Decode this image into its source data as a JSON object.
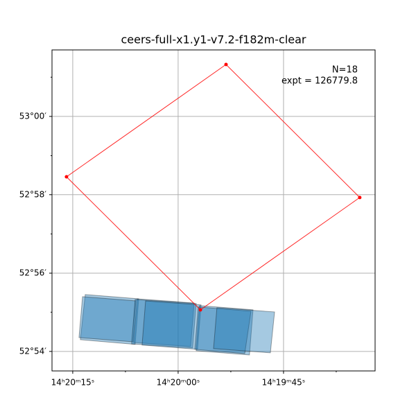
{
  "chart_data": {
    "type": "footprint",
    "title": "ceers-full-x1.y1-v7.2-f182m-clear",
    "annotations": [
      "N=18",
      "expt = 126779.8"
    ],
    "xlim": [
      215.0748,
      214.8832
    ],
    "ylim": [
      52.8917,
      53.0283
    ],
    "xticks": [
      {
        "value": 215.0625,
        "label": "14ʰ20ᵐ15ˢ"
      },
      {
        "value": 215.0,
        "label": "14ʰ20ᵐ00ˢ"
      },
      {
        "value": 214.9375,
        "label": "14ʰ19ᵐ45ˢ"
      }
    ],
    "yticks": [
      {
        "value": 52.9,
        "label": "52°54′"
      },
      {
        "value": 52.9333,
        "label": "52°56′"
      },
      {
        "value": 52.9667,
        "label": "52°58′"
      },
      {
        "value": 53.0,
        "label": "53°00′"
      }
    ],
    "xminorticks": [
      215.03125,
      214.96875,
      214.90625
    ],
    "yminorticks": [
      52.9167,
      52.95,
      52.9833,
      53.0167
    ],
    "grid": true,
    "polygon": {
      "color": "#ff0000",
      "ra": [
        215.0662,
        214.9716,
        214.8923,
        214.9868
      ],
      "dec": [
        52.9743,
        53.0221,
        52.9655,
        52.9177
      ]
    },
    "footprint_color": "#1f77b4",
    "footprints": [
      {
        "ra": [
          215.0551,
          215.0234,
          215.0255,
          215.058
        ],
        "dec": [
          52.9242,
          52.9224,
          52.903,
          52.905
        ]
      },
      {
        "ra": [
          215.0567,
          215.0251,
          215.0267,
          215.0588
        ],
        "dec": [
          52.9233,
          52.9215,
          52.9041,
          52.9059
        ]
      },
      {
        "ra": [
          215.0243,
          214.9905,
          214.9926,
          215.0263
        ],
        "dec": [
          52.9224,
          52.9206,
          52.9021,
          52.9038
        ]
      },
      {
        "ra": [
          215.0255,
          214.9893,
          214.9914,
          215.0276
        ],
        "dec": [
          52.9221,
          52.9204,
          52.9015,
          52.9032
        ]
      },
      {
        "ra": [
          215.0193,
          214.9864,
          214.9885,
          215.0214
        ],
        "dec": [
          52.9215,
          52.9198,
          52.9009,
          52.9027
        ]
      },
      {
        "ra": [
          214.9873,
          214.9556,
          214.9577,
          214.9893
        ],
        "dec": [
          52.9195,
          52.9177,
          52.8985,
          52.9003
        ]
      },
      {
        "ra": [
          214.9881,
          214.9568,
          214.9605,
          214.9901
        ],
        "dec": [
          52.9189,
          52.9171,
          52.8991,
          52.9009
        ]
      },
      {
        "ra": [
          214.977,
          214.9428,
          214.9453,
          214.979
        ],
        "dec": [
          52.9186,
          52.9168,
          52.8994,
          52.9012
        ]
      }
    ]
  }
}
